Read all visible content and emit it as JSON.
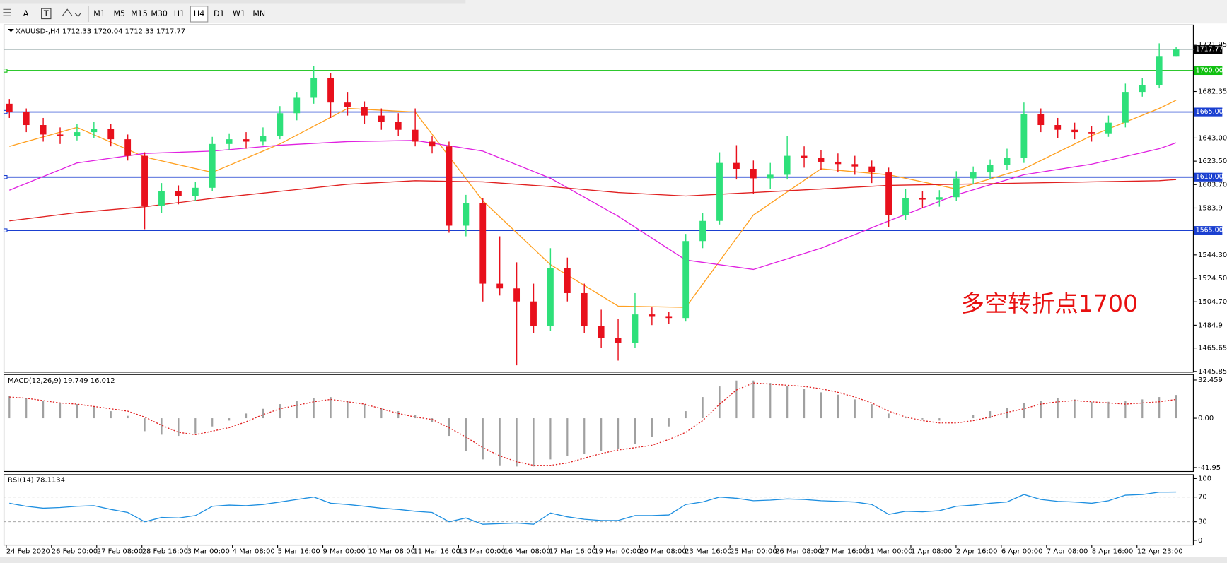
{
  "toolbar": {
    "font_button": "A",
    "timeframes": [
      "M1",
      "M5",
      "M15",
      "M30",
      "H1",
      "H4",
      "D1",
      "W1",
      "MN"
    ],
    "selected": "H4"
  },
  "chart_data": {
    "type": "candlestick",
    "header": "XAUUSD-,H4  1712.33 1720.04 1712.33 1717.77",
    "annotation": "多空转折点1700",
    "up_color": "#2ee07a",
    "down_color": "#e8101c",
    "open": [
      1672,
      1665,
      1654,
      1646,
      1645,
      1648,
      1651,
      1642,
      1628,
      1586,
      1598,
      1594,
      1601,
      1638,
      1642,
      1640,
      1645,
      1664,
      1677,
      1694,
      1673,
      1669,
      1662,
      1657,
      1650,
      1640,
      1636,
      1569,
      1588,
      1520,
      1516,
      1505,
      1484,
      1533,
      1512,
      1484,
      1474,
      1470,
      1494,
      1492,
      1491,
      1556,
      1573,
      1622,
      1617,
      1609,
      1612,
      1628,
      1626,
      1623,
      1621,
      1619,
      1614,
      1578,
      1592,
      1591,
      1593,
      1609,
      1614,
      1620,
      1626,
      1663,
      1654,
      1650,
      1648,
      1647,
      1656,
      1682,
      1688,
      1712.33
    ],
    "high": [
      1676,
      1668,
      1660,
      1652,
      1655,
      1657,
      1655,
      1646,
      1631,
      1605,
      1603,
      1606,
      1644,
      1647,
      1648,
      1652,
      1670,
      1682,
      1704,
      1698,
      1682,
      1674,
      1668,
      1664,
      1668,
      1645,
      1640,
      1595,
      1592,
      1560,
      1538,
      1520,
      1550,
      1542,
      1520,
      1498,
      1490,
      1512,
      1500,
      1496,
      1562,
      1580,
      1631,
      1637,
      1624,
      1622,
      1645,
      1636,
      1633,
      1630,
      1628,
      1624,
      1618,
      1600,
      1598,
      1599,
      1615,
      1619,
      1625,
      1634,
      1673,
      1668,
      1660,
      1656,
      1653,
      1662,
      1689,
      1694,
      1723,
      1720.04
    ],
    "low": [
      1660,
      1648,
      1640,
      1638,
      1641,
      1643,
      1636,
      1624,
      1566,
      1580,
      1587,
      1590,
      1598,
      1633,
      1634,
      1637,
      1642,
      1658,
      1672,
      1660,
      1662,
      1655,
      1650,
      1645,
      1636,
      1630,
      1563,
      1560,
      1505,
      1510,
      1451,
      1478,
      1480,
      1505,
      1478,
      1466,
      1455,
      1466,
      1485,
      1486,
      1488,
      1550,
      1570,
      1608,
      1596,
      1600,
      1608,
      1618,
      1616,
      1614,
      1612,
      1605,
      1568,
      1574,
      1584,
      1585,
      1590,
      1604,
      1608,
      1616,
      1622,
      1648,
      1643,
      1642,
      1640,
      1644,
      1652,
      1678,
      1685,
      1712.33
    ],
    "close": [
      1665,
      1654,
      1646,
      1645,
      1648,
      1651,
      1642,
      1628,
      1586,
      1598,
      1594,
      1601,
      1638,
      1642,
      1640,
      1645,
      1664,
      1677,
      1694,
      1673,
      1669,
      1662,
      1657,
      1650,
      1640,
      1636,
      1569,
      1588,
      1520,
      1516,
      1505,
      1484,
      1533,
      1512,
      1484,
      1474,
      1470,
      1494,
      1492,
      1491,
      1556,
      1573,
      1622,
      1617,
      1609,
      1612,
      1628,
      1626,
      1623,
      1621,
      1619,
      1614,
      1578,
      1592,
      1591,
      1593,
      1609,
      1614,
      1620,
      1626,
      1663,
      1654,
      1650,
      1648,
      1647,
      1656,
      1682,
      1688,
      1712.33,
      1717.77
    ],
    "ylim": [
      1445.2,
      1738.5
    ],
    "yticks": [
      1721.95,
      1682.35,
      {
        "value": 1643,
        "label": "1643.00"
      },
      {
        "value": 1623.5,
        "label": "1623.50"
      },
      {
        "value": 1603.7,
        "label": "1603.70"
      },
      1583.9,
      {
        "value": 1544.3,
        "label": "1544.30"
      },
      {
        "value": 1524.5,
        "label": "1524.50"
      },
      {
        "value": 1504.7,
        "label": "1504.70"
      },
      1484.9,
      1465.65,
      1445.85
    ],
    "levels": [
      {
        "value": 1700,
        "label": "1700.00",
        "color": "#10c010"
      },
      {
        "value": 1665,
        "label": "1665.00",
        "color": "#1a3fd0"
      },
      {
        "value": 1610,
        "label": "1610.00",
        "color": "#1a3fd0"
      },
      {
        "value": 1565,
        "label": "1565.00",
        "color": "#1a3fd0"
      }
    ],
    "last_price": 1717.77,
    "moving_averages": [
      {
        "color": "#ffa020",
        "x": [
          0,
          4,
          8,
          12,
          16,
          20,
          24,
          28,
          32,
          36,
          40,
          44,
          48,
          52,
          56,
          60,
          64,
          68,
          69
        ],
        "values": [
          1636,
          1652,
          1627,
          1614,
          1638,
          1668,
          1665,
          1590,
          1536,
          1501,
          1500,
          1578,
          1617,
          1612,
          1600,
          1617,
          1645,
          1668,
          1675
        ]
      },
      {
        "color": "#e020e0",
        "x": [
          0,
          4,
          8,
          12,
          16,
          20,
          24,
          28,
          32,
          36,
          40,
          44,
          48,
          52,
          56,
          60,
          64,
          68,
          69
        ],
        "values": [
          1599,
          1622,
          1630,
          1632,
          1637,
          1640,
          1641,
          1632,
          1609,
          1577,
          1540,
          1532,
          1550,
          1573,
          1595,
          1612,
          1621,
          1634,
          1639
        ]
      },
      {
        "color": "#e02020",
        "x": [
          0,
          4,
          8,
          12,
          16,
          20,
          24,
          28,
          32,
          36,
          40,
          44,
          48,
          52,
          56,
          60,
          64,
          68,
          69
        ],
        "values": [
          1573,
          1580,
          1585,
          1592,
          1598,
          1604,
          1607,
          1606,
          1602,
          1597,
          1594,
          1597,
          1600,
          1603,
          1604,
          1605,
          1606,
          1607,
          1608
        ]
      }
    ],
    "x_labels": [
      "24 Feb 2020",
      "26 Feb 00:00",
      "27 Feb 08:00",
      "28 Feb 16:00",
      "3 Mar 00:00",
      "4 Mar 08:00",
      "5 Mar 16:00",
      "9 Mar 00:00",
      "10 Mar 08:00",
      "11 Mar 16:00",
      "13 Mar 00:00",
      "16 Mar 08:00",
      "17 Mar 16:00",
      "19 Mar 00:00",
      "20 Mar 08:00",
      "23 Mar 16:00",
      "25 Mar 00:00",
      "26 Mar 08:00",
      "27 Mar 16:00",
      "31 Mar 00:00",
      "1 Apr 08:00",
      "2 Apr 16:00",
      "6 Apr 00:00",
      "7 Apr 08:00",
      "8 Apr 16:00",
      "12 Apr 23:00"
    ],
    "macd": {
      "title": "MACD(12,26,9) 19.749 16.012",
      "hist_color": "#a0a0a0",
      "signal_color": "#e02020",
      "ylim": [
        -45.27,
        37.11
      ],
      "yticks": [
        32.459,
        {
          "value": 0,
          "label": "0.00"
        },
        -41.95
      ],
      "histogram": [
        19,
        17,
        15,
        13,
        12,
        10,
        6,
        2,
        -11,
        -14,
        -15,
        -13,
        -7,
        -2,
        4,
        8,
        12,
        15,
        17,
        18,
        15,
        12,
        9,
        6,
        3,
        -3,
        -15,
        -28,
        -35,
        -40,
        -41,
        -41,
        -35,
        -32,
        -30,
        -28,
        -26,
        -22,
        -16,
        -7,
        6,
        18,
        27,
        32,
        32,
        30,
        27,
        25,
        22,
        20,
        16,
        12,
        4,
        1,
        -1,
        -2,
        0,
        3,
        6,
        9,
        13,
        15,
        17,
        16,
        14,
        14,
        15,
        16,
        18,
        19.749
      ],
      "signal": [
        18,
        17,
        15,
        13,
        12,
        10,
        8,
        6,
        1,
        -6,
        -12,
        -14,
        -11,
        -8,
        -3,
        3,
        8,
        11,
        14,
        16,
        14,
        12,
        8,
        4,
        1,
        -1,
        -8,
        -16,
        -25,
        -32,
        -37,
        -40,
        -40,
        -38,
        -34,
        -30,
        -27,
        -25,
        -23,
        -18,
        -12,
        -2,
        12,
        24,
        30,
        29,
        28,
        27,
        25,
        22,
        18,
        13,
        6,
        1,
        -2,
        -4,
        -4,
        -2,
        1,
        5,
        8,
        12,
        14,
        15,
        14,
        13,
        12,
        13,
        14,
        16.012
      ]
    },
    "rsi": {
      "title": "RSI(14) 78.1134",
      "color": "#1e8fe0",
      "ylim": [
        -7.6,
        106.3
      ],
      "yticks": [
        100,
        70,
        30,
        0
      ],
      "levels": [
        70,
        30
      ],
      "values": [
        60,
        55,
        52,
        53,
        55,
        56,
        50,
        45,
        30,
        37,
        36,
        40,
        55,
        57,
        56,
        58,
        62,
        66,
        70,
        60,
        58,
        55,
        52,
        50,
        47,
        45,
        30,
        36,
        26,
        27,
        28,
        26,
        44,
        38,
        34,
        32,
        32,
        40,
        40,
        41,
        58,
        62,
        70,
        68,
        64,
        65,
        67,
        66,
        64,
        63,
        62,
        58,
        42,
        47,
        46,
        48,
        55,
        57,
        60,
        62,
        74,
        66,
        63,
        62,
        60,
        64,
        73,
        74,
        78,
        78.1134
      ]
    }
  }
}
